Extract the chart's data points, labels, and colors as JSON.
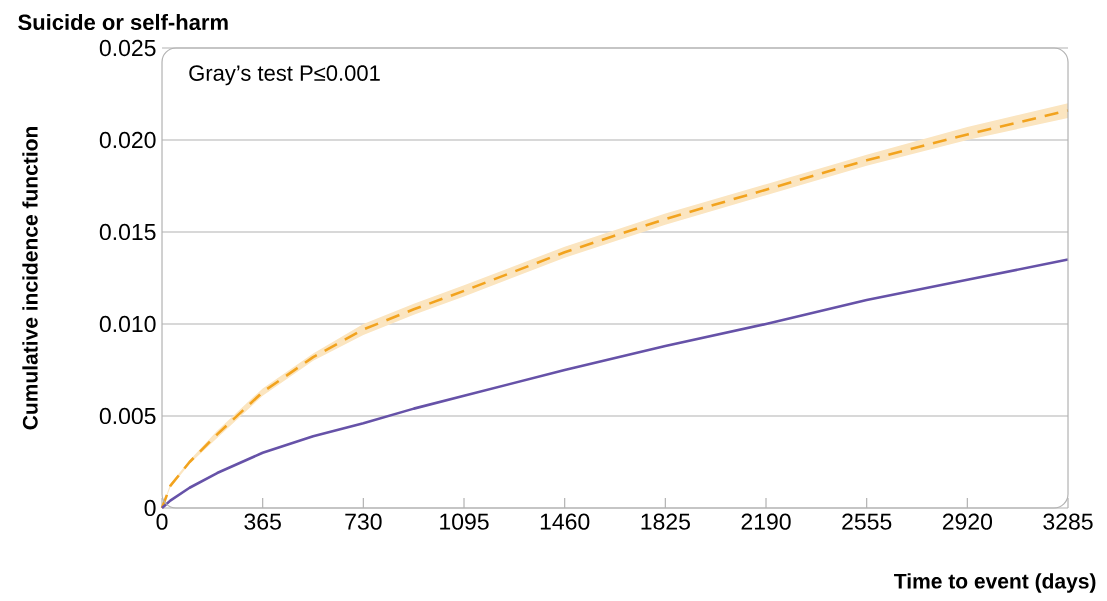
{
  "chart_data": {
    "type": "line",
    "title": "Suicide or self-harm",
    "xlabel": "Time to event (days)",
    "ylabel": "Cumulative incidence function",
    "annotations": [
      "Gray’s test P≤0.001"
    ],
    "x": [
      0,
      30,
      100,
      200,
      365,
      548,
      730,
      913,
      1095,
      1460,
      1825,
      2190,
      2555,
      2920,
      3285
    ],
    "series": [
      {
        "color": "#f2a31e",
        "line_style": "dashed",
        "values": [
          0,
          0.0012,
          0.0025,
          0.004,
          0.0063,
          0.0082,
          0.0097,
          0.0108,
          0.0118,
          0.0139,
          0.0157,
          0.0173,
          0.0189,
          0.0203,
          0.0216
        ],
        "lower": [
          0,
          0.0011,
          0.0024,
          0.0038,
          0.0061,
          0.008,
          0.0094,
          0.0105,
          0.0115,
          0.0136,
          0.0154,
          0.017,
          0.0186,
          0.02,
          0.0212
        ],
        "upper": [
          0,
          0.0013,
          0.0026,
          0.0042,
          0.0065,
          0.0084,
          0.01,
          0.0111,
          0.0121,
          0.0142,
          0.016,
          0.0176,
          0.0192,
          0.0207,
          0.022
        ]
      },
      {
        "color": "#6652a8",
        "line_style": "solid",
        "values": [
          0,
          0.0004,
          0.0011,
          0.0019,
          0.003,
          0.0039,
          0.0046,
          0.0054,
          0.0061,
          0.0075,
          0.0088,
          0.01,
          0.0113,
          0.0124,
          0.0135
        ]
      }
    ],
    "xlim": [
      0,
      3285
    ],
    "ylim": [
      0,
      0.025
    ],
    "xticks": [
      0,
      365,
      730,
      1095,
      1460,
      1825,
      2190,
      2555,
      2920,
      3285
    ],
    "yticks": [
      0,
      0.005,
      {
        "value": 0.01,
        "label": "0.010"
      },
      0.015,
      {
        "value": 0.02,
        "label": "0.020"
      },
      0.025
    ],
    "grid": "y"
  }
}
